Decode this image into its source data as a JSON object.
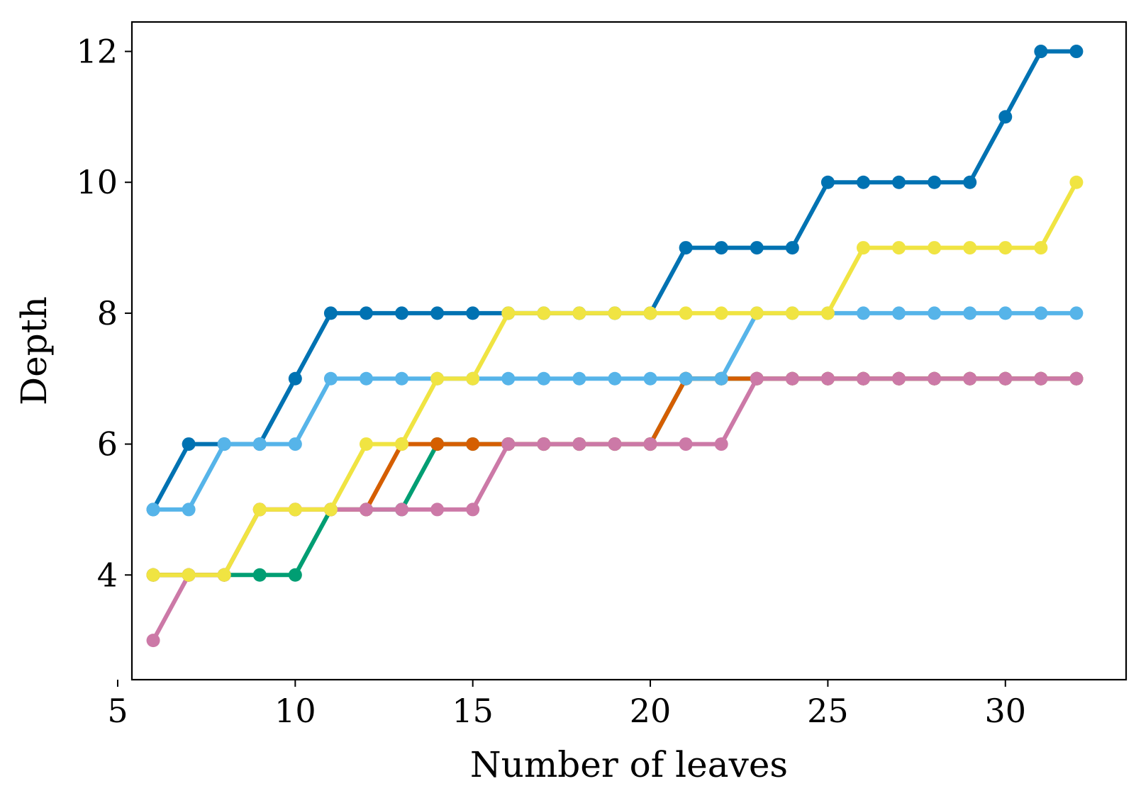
{
  "chart_data": {
    "type": "line",
    "title": "",
    "xlabel": "Number of leaves",
    "ylabel": "Depth",
    "xlim": [
      5.4,
      33.4
    ],
    "ylim": [
      2.4,
      12.45
    ],
    "xticks": [
      5,
      10,
      15,
      20,
      25,
      30
    ],
    "yticks": [
      4,
      6,
      8,
      10,
      12
    ],
    "grid": false,
    "legend": "none",
    "x": [
      6,
      7,
      8,
      9,
      10,
      11,
      12,
      13,
      14,
      15,
      16,
      17,
      18,
      19,
      20,
      21,
      22,
      23,
      24,
      25,
      26,
      27,
      28,
      29,
      30,
      31,
      32
    ],
    "series": [
      {
        "color": "#0072B2",
        "values": [
          5,
          6,
          6,
          6,
          7,
          8,
          8,
          8,
          8,
          8,
          8,
          8,
          8,
          8,
          8,
          9,
          9,
          9,
          9,
          10,
          10,
          10,
          10,
          10,
          11,
          12,
          12
        ]
      },
      {
        "color": "#009E73",
        "values": [
          4,
          4,
          4,
          4,
          4,
          5,
          5,
          5,
          6,
          6,
          6,
          6,
          6,
          6,
          6,
          7,
          7,
          7,
          7,
          7,
          7,
          7,
          7,
          7,
          7,
          7,
          7
        ]
      },
      {
        "color": "#D55E00",
        "values": [
          4,
          4,
          4,
          5,
          5,
          5,
          5,
          6,
          6,
          6,
          6,
          6,
          6,
          6,
          6,
          7,
          7,
          7,
          7,
          7,
          7,
          7,
          7,
          7,
          7,
          7,
          7
        ]
      },
      {
        "color": "#56B4E9",
        "values": [
          5,
          5,
          6,
          6,
          6,
          7,
          7,
          7,
          7,
          7,
          7,
          7,
          7,
          7,
          7,
          7,
          7,
          8,
          8,
          8,
          8,
          8,
          8,
          8,
          8,
          8,
          8
        ]
      },
      {
        "color": "#CC79A7",
        "values": [
          3,
          4,
          4,
          5,
          5,
          5,
          5,
          5,
          5,
          5,
          6,
          6,
          6,
          6,
          6,
          6,
          6,
          7,
          7,
          7,
          7,
          7,
          7,
          7,
          7,
          7,
          7
        ]
      },
      {
        "color": "#F0E442",
        "values": [
          4,
          4,
          4,
          5,
          5,
          5,
          6,
          6,
          7,
          7,
          8,
          8,
          8,
          8,
          8,
          8,
          8,
          8,
          8,
          8,
          9,
          9,
          9,
          9,
          9,
          9,
          10
        ]
      }
    ]
  }
}
